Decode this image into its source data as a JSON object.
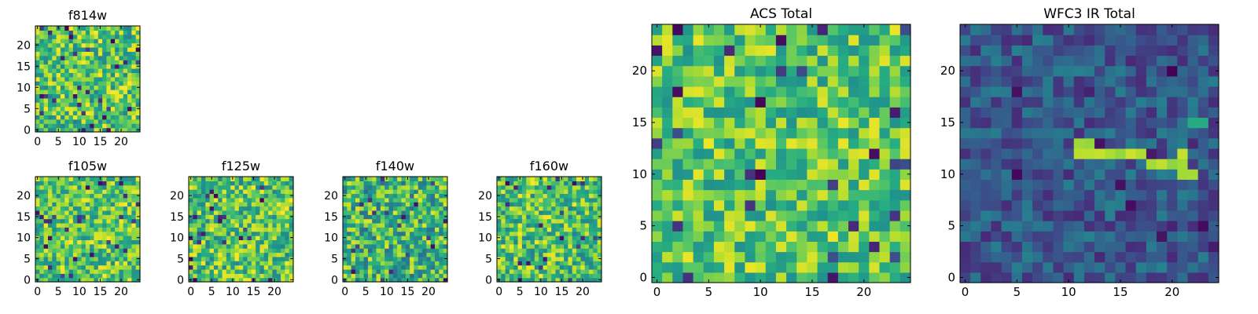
{
  "figure": {
    "description_free": true
  },
  "chart_data": [
    {
      "type": "heatmap",
      "title": "f814w",
      "nx": 25,
      "ny": 25,
      "xlim": [
        -0.5,
        24.5
      ],
      "ylim": [
        -0.5,
        24.5
      ],
      "xticks": [
        0,
        5,
        10,
        15,
        20
      ],
      "yticks": [
        0,
        5,
        10,
        15,
        20
      ],
      "xtick_labels": [
        "0",
        "5",
        "10",
        "15",
        "20"
      ],
      "ytick_labels": [
        "0",
        "5",
        "10",
        "15",
        "20"
      ],
      "colormap": "viridis",
      "pattern": "noise",
      "bias": 0.72,
      "spread": 0.28,
      "seed": 11
    },
    {
      "type": "heatmap",
      "title": "f105w",
      "nx": 25,
      "ny": 25,
      "xlim": [
        -0.5,
        24.5
      ],
      "ylim": [
        -0.5,
        24.5
      ],
      "xticks": [
        0,
        5,
        10,
        15,
        20
      ],
      "yticks": [
        0,
        5,
        10,
        15,
        20
      ],
      "xtick_labels": [
        "0",
        "5",
        "10",
        "15",
        "20"
      ],
      "ytick_labels": [
        "0",
        "5",
        "10",
        "15",
        "20"
      ],
      "colormap": "viridis",
      "pattern": "noise",
      "bias": 0.74,
      "spread": 0.26,
      "seed": 23
    },
    {
      "type": "heatmap",
      "title": "f125w",
      "nx": 25,
      "ny": 25,
      "xlim": [
        -0.5,
        24.5
      ],
      "ylim": [
        -0.5,
        24.5
      ],
      "xticks": [
        0,
        5,
        10,
        15,
        20
      ],
      "yticks": [
        0,
        5,
        10,
        15,
        20
      ],
      "xtick_labels": [
        "0",
        "5",
        "10",
        "15",
        "20"
      ],
      "ytick_labels": [
        "0",
        "5",
        "10",
        "15",
        "20"
      ],
      "colormap": "viridis",
      "pattern": "noise",
      "bias": 0.72,
      "spread": 0.28,
      "seed": 37
    },
    {
      "type": "heatmap",
      "title": "f140w",
      "nx": 25,
      "ny": 25,
      "xlim": [
        -0.5,
        24.5
      ],
      "ylim": [
        -0.5,
        24.5
      ],
      "xticks": [
        0,
        5,
        10,
        15,
        20
      ],
      "yticks": [
        0,
        5,
        10,
        15,
        20
      ],
      "xtick_labels": [
        "0",
        "5",
        "10",
        "15",
        "20"
      ],
      "ytick_labels": [
        "0",
        "5",
        "10",
        "15",
        "20"
      ],
      "colormap": "viridis",
      "pattern": "noise",
      "bias": 0.66,
      "spread": 0.3,
      "seed": 41
    },
    {
      "type": "heatmap",
      "title": "f160w",
      "nx": 25,
      "ny": 25,
      "xlim": [
        -0.5,
        24.5
      ],
      "ylim": [
        -0.5,
        24.5
      ],
      "xticks": [
        0,
        5,
        10,
        15,
        20
      ],
      "yticks": [
        0,
        5,
        10,
        15,
        20
      ],
      "xtick_labels": [
        "0",
        "5",
        "10",
        "15",
        "20"
      ],
      "ytick_labels": [
        "0",
        "5",
        "10",
        "15",
        "20"
      ],
      "colormap": "viridis",
      "pattern": "noise",
      "bias": 0.72,
      "spread": 0.28,
      "seed": 53
    },
    {
      "type": "heatmap",
      "title": "ACS Total",
      "nx": 25,
      "ny": 25,
      "xlim": [
        -0.5,
        24.5
      ],
      "ylim": [
        -0.5,
        24.5
      ],
      "xticks": [
        0,
        5,
        10,
        15,
        20
      ],
      "yticks": [
        0,
        5,
        10,
        15,
        20
      ],
      "xtick_labels": [
        "0",
        "5",
        "10",
        "15",
        "20"
      ],
      "ytick_labels": [
        "0",
        "5",
        "10",
        "15",
        "20"
      ],
      "colormap": "viridis",
      "pattern": "noise",
      "bias": 0.74,
      "spread": 0.24,
      "seed": 67
    },
    {
      "type": "heatmap",
      "title": "WFC3 IR Total",
      "nx": 25,
      "ny": 25,
      "xlim": [
        -0.5,
        24.5
      ],
      "ylim": [
        -0.5,
        24.5
      ],
      "xticks": [
        0,
        5,
        10,
        15,
        20
      ],
      "yticks": [
        0,
        5,
        10,
        15,
        20
      ],
      "xtick_labels": [
        "0",
        "5",
        "10",
        "15",
        "20"
      ],
      "ytick_labels": [
        "0",
        "5",
        "10",
        "15",
        "20"
      ],
      "colormap": "viridis",
      "pattern": "noise",
      "bias": 0.28,
      "spread": 0.16,
      "seed": 79,
      "feature": {
        "name": "bright streak",
        "cells": [
          [
            11,
            12
          ],
          [
            12,
            12
          ],
          [
            11,
            13
          ],
          [
            12,
            13
          ],
          [
            13,
            12
          ],
          [
            14,
            12
          ],
          [
            15,
            12
          ],
          [
            16,
            12
          ],
          [
            17,
            12
          ],
          [
            18,
            11
          ],
          [
            19,
            11
          ],
          [
            20,
            11
          ],
          [
            21,
            11
          ],
          [
            21,
            12
          ],
          [
            21,
            10
          ],
          [
            22,
            10
          ]
        ],
        "value": 0.95
      },
      "extra_cells": [
        [
          22,
          15
        ],
        [
          23,
          15
        ]
      ]
    }
  ]
}
